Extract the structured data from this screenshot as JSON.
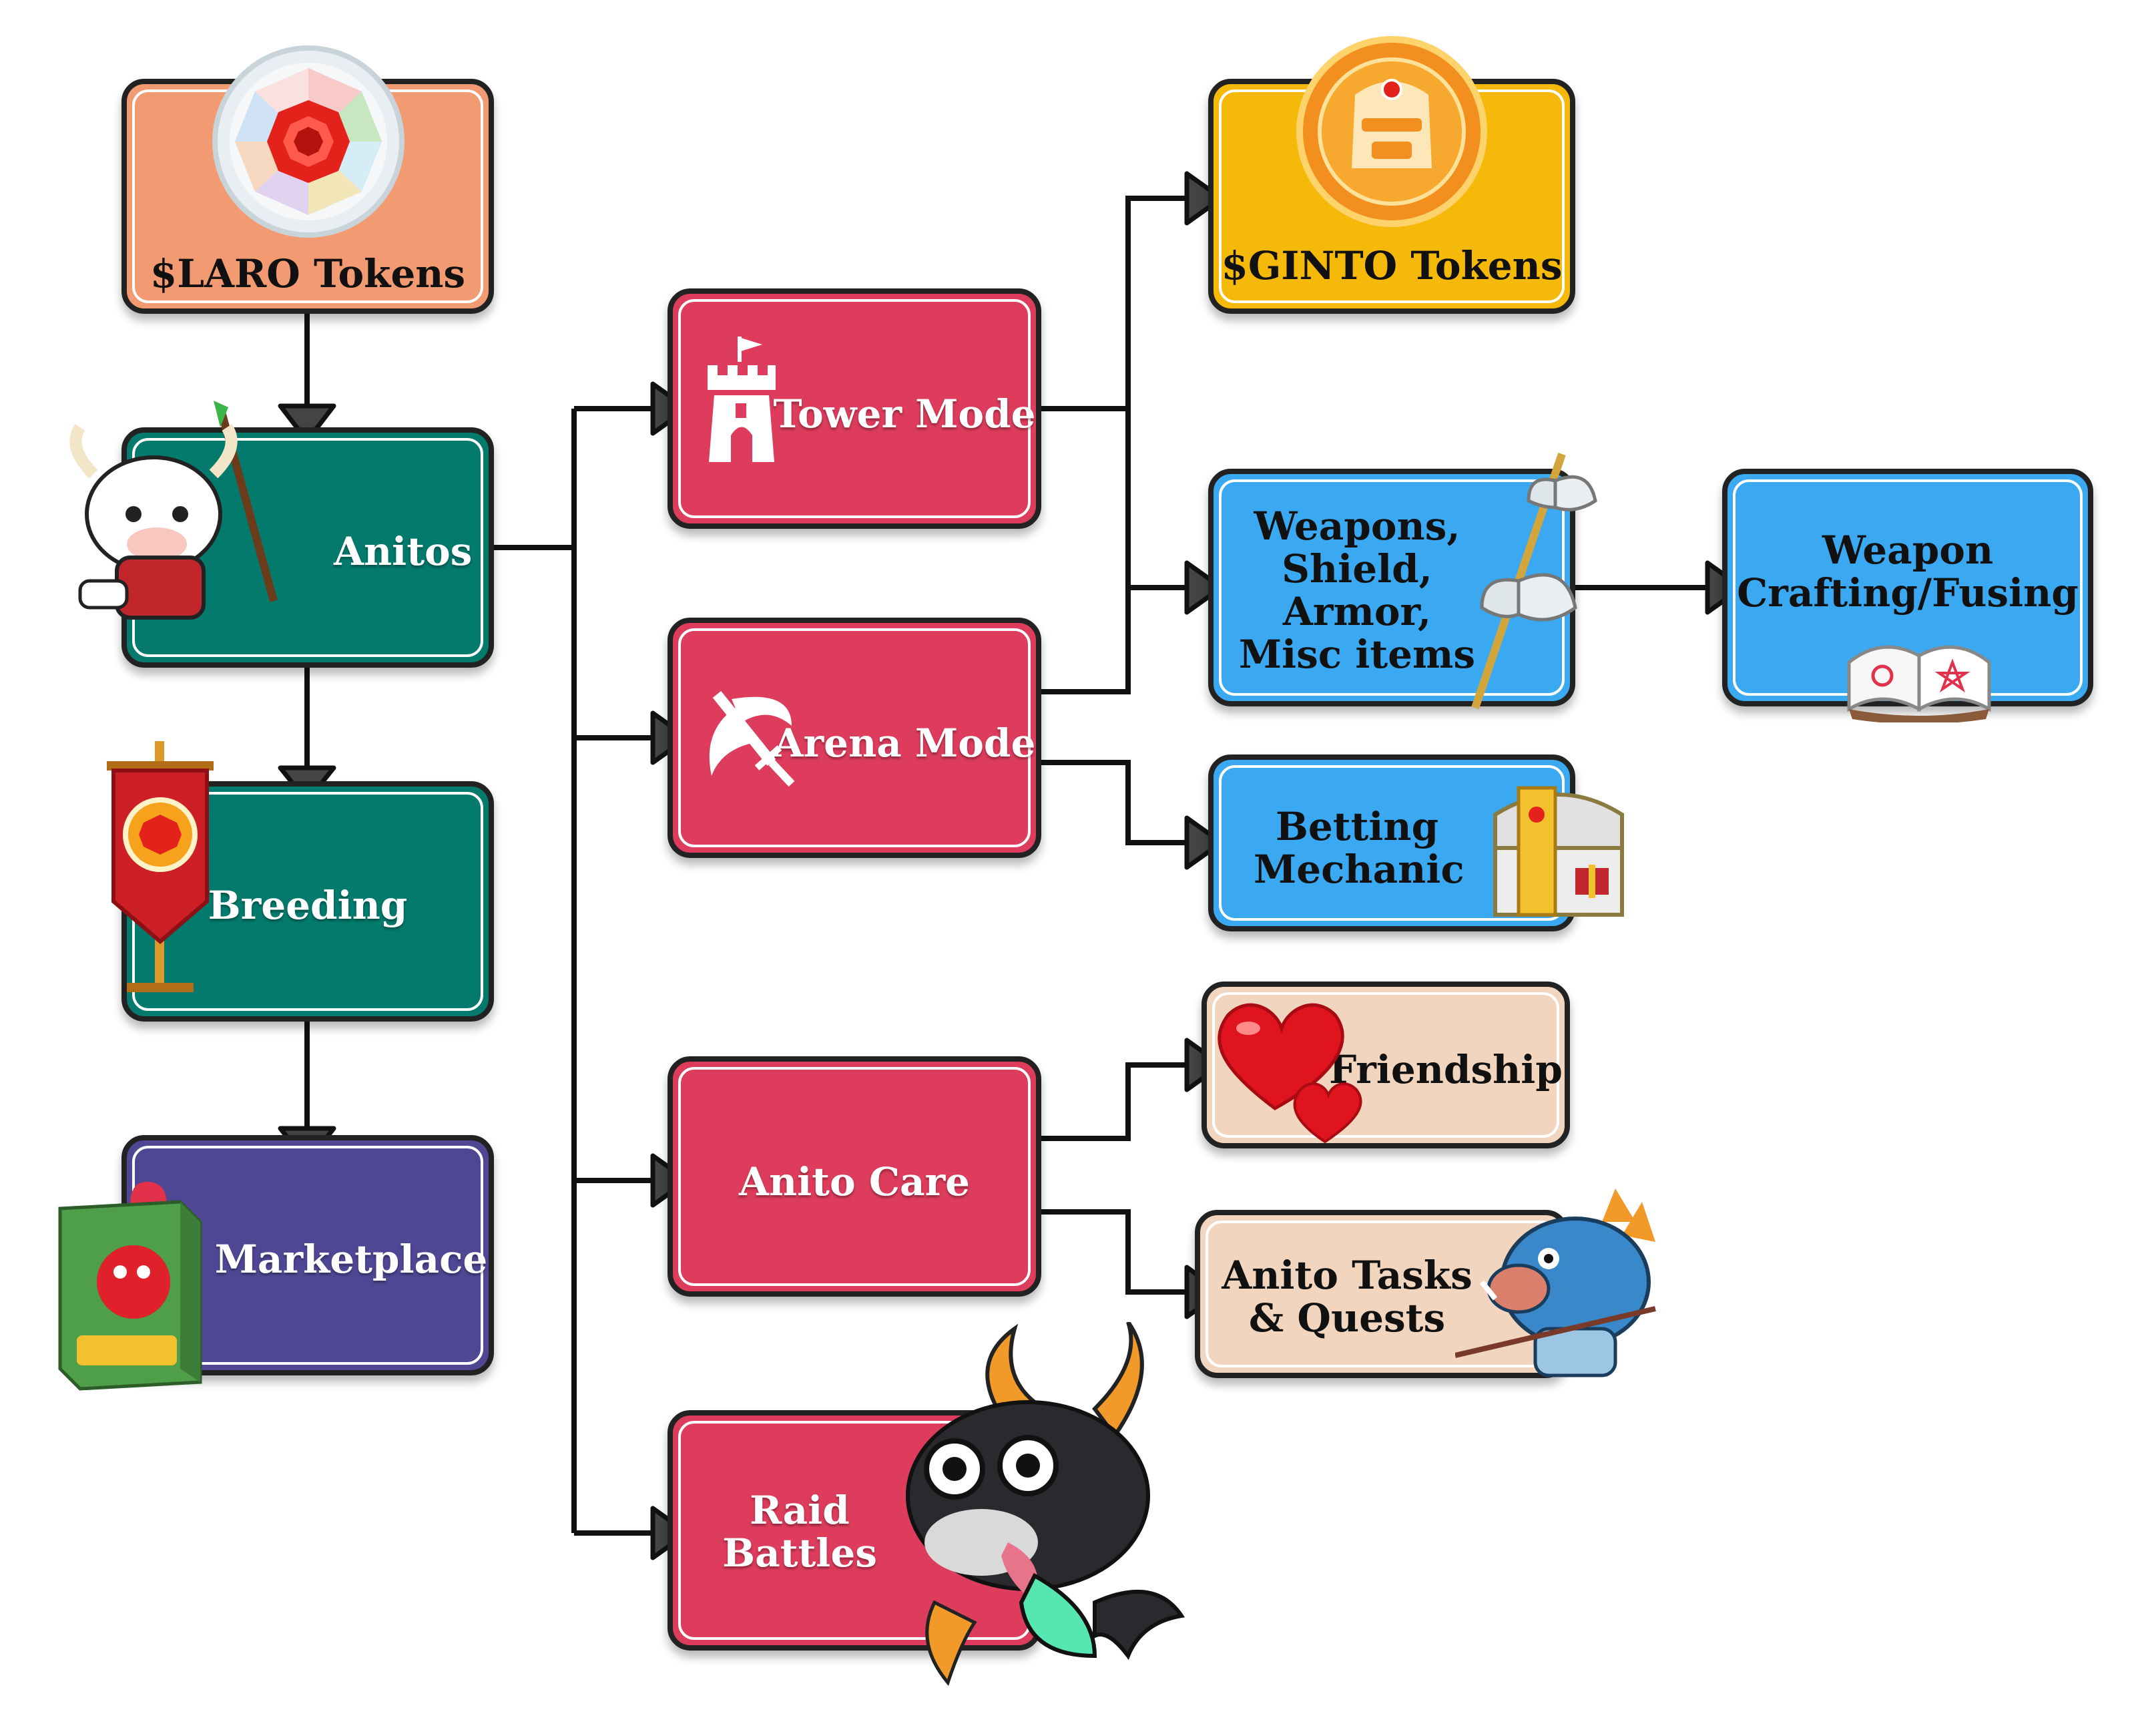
{
  "nodes": {
    "laro": {
      "label": "$LARO Tokens"
    },
    "anitos": {
      "label": "Anitos"
    },
    "breeding": {
      "label": "Breeding"
    },
    "marketplace": {
      "label": "Marketplace"
    },
    "tower": {
      "label": "Tower Mode"
    },
    "arena": {
      "label": "Arena Mode"
    },
    "care": {
      "label": "Anito Care"
    },
    "raid": {
      "line1": "Raid",
      "line2": "Battles"
    },
    "ginto": {
      "label": "$GINTO Tokens"
    },
    "weapons": {
      "line1": "Weapons,",
      "line2": "Shield,",
      "line3": "Armor,",
      "line4": "Misc items"
    },
    "crafting": {
      "line1": "Weapon",
      "line2": "Crafting/Fusing"
    },
    "betting": {
      "line1": "Betting",
      "line2": "Mechanic"
    },
    "friendship": {
      "label": "Friendship"
    },
    "tasks": {
      "line1": "Anito Tasks",
      "line2": "& Quests"
    }
  },
  "colors": {
    "laro": "#f29a72",
    "anitos": "#037a6c",
    "breeding": "#037a6c",
    "marketplace": "#4f4794",
    "mode": "#dd3c5c",
    "ginto": "#f5b90a",
    "items": "#3aa9f2",
    "care_sub": "#f1d5bf"
  },
  "icons": [
    "laro-gem-coin-icon",
    "cow-warrior-icon",
    "banner-icon",
    "collectible-box-icon",
    "tower-icon",
    "crossed-swords-icon",
    "dragon-mascot-icon",
    "ginto-coin-icon",
    "axe-weapon-icon",
    "open-book-icon",
    "treasure-chest-icon",
    "hearts-icon",
    "boar-warrior-icon"
  ]
}
